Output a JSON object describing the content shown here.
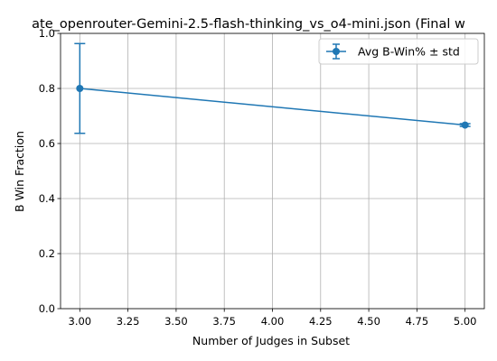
{
  "chart_data": {
    "type": "line",
    "title": "ate_openrouter-Gemini-2.5-flash-thinking_vs_o4-mini.json (Final w",
    "xlabel": "Number of Judges in Subset",
    "ylabel": "B Win Fraction",
    "xlim": [
      2.9,
      5.1
    ],
    "ylim": [
      0.0,
      1.0
    ],
    "xticks": [
      3.0,
      3.25,
      3.5,
      3.75,
      4.0,
      4.25,
      4.5,
      4.75,
      5.0
    ],
    "xtick_labels": [
      "3.00",
      "3.25",
      "3.50",
      "3.75",
      "4.00",
      "4.25",
      "4.50",
      "4.75",
      "5.00"
    ],
    "yticks": [
      0.0,
      0.2,
      0.4,
      0.6,
      0.8,
      1.0
    ],
    "ytick_labels": [
      "0.0",
      "0.2",
      "0.4",
      "0.6",
      "0.8",
      "1.0"
    ],
    "grid": true,
    "legend_position": "top-right",
    "color": "#1f77b4",
    "series": [
      {
        "name": "Avg B-Win% ± std",
        "x": [
          3,
          5
        ],
        "y": [
          0.8,
          0.667
        ],
        "err": [
          0.163,
          0.005
        ]
      }
    ]
  }
}
